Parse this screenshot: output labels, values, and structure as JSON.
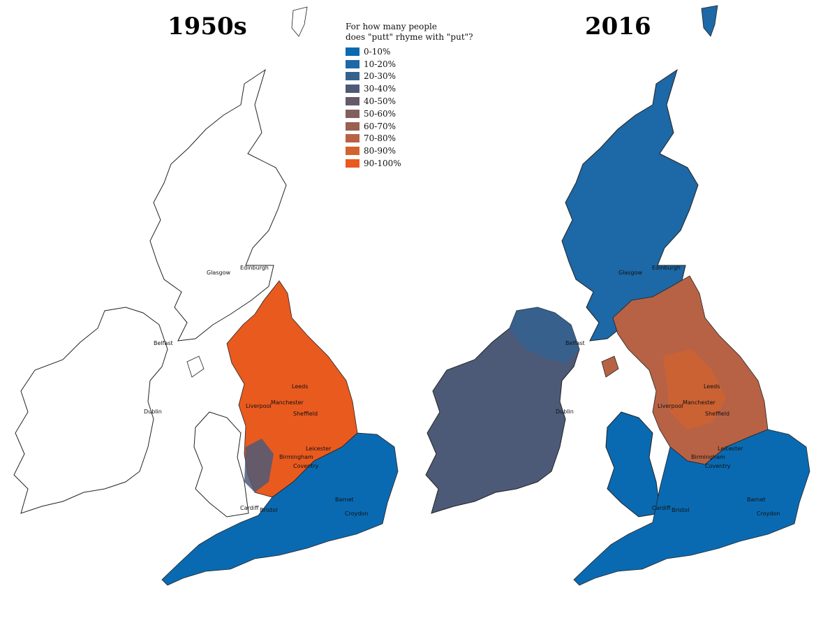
{
  "panels": [
    {
      "title": "1950s"
    },
    {
      "title": "2016"
    }
  ],
  "legend": {
    "title_line1": "For how many people",
    "title_line2": "does \"putt\" rhyme with \"put\"?",
    "items": [
      {
        "label": "0-10%",
        "color": "#0a6ab1"
      },
      {
        "label": "10-20%",
        "color": "#1d68a6"
      },
      {
        "label": "20-30%",
        "color": "#35618f"
      },
      {
        "label": "30-40%",
        "color": "#4d5a77"
      },
      {
        "label": "40-50%",
        "color": "#655a68"
      },
      {
        "label": "50-60%",
        "color": "#80605c"
      },
      {
        "label": "60-70%",
        "color": "#9a6050"
      },
      {
        "label": "70-80%",
        "color": "#b86245"
      },
      {
        "label": "80-90%",
        "color": "#d2632f"
      },
      {
        "label": "90-100%",
        "color": "#e95a1f"
      }
    ]
  },
  "cities": {
    "glasgow": "Glasgow",
    "edinburgh": "Edinburgh",
    "belfast": "Belfast",
    "dublin": "Dublin",
    "leeds": "Leeds",
    "liverpool": "Liverpool",
    "manchester": "Manchester",
    "sheffield": "Sheffield",
    "leicester": "Leicester",
    "birmingham": "Birmingham",
    "coventry": "Coventry",
    "barnet": "Barnet",
    "croydon": "Croydon",
    "cardiff": "Cardiff",
    "bristol": "Bristol"
  }
}
